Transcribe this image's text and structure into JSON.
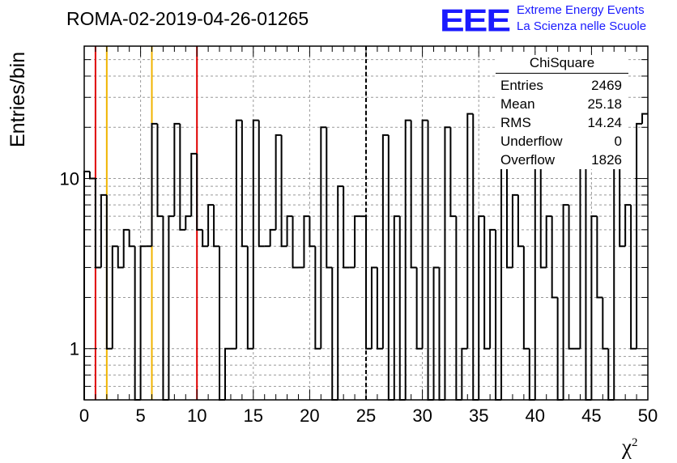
{
  "header": {
    "title": "ROMA-02-2019-04-26-01265",
    "logo_text": "EEE",
    "logo_line1": "Extreme Energy Events",
    "logo_line2": "La Scienza nelle Scuole"
  },
  "stats": {
    "title": "ChiSquare",
    "rows": [
      {
        "label": "Entries",
        "value": "2469"
      },
      {
        "label": "Mean",
        "value": "25.18"
      },
      {
        "label": "RMS",
        "value": "14.24"
      },
      {
        "label": "Underflow",
        "value": "0"
      },
      {
        "label": "Overflow",
        "value": "1826"
      }
    ]
  },
  "chart_data": {
    "type": "histogram",
    "ylabel": "Entries/bin",
    "xlabel": "χ",
    "xlabel_sup": "2",
    "xlim": [
      0,
      50
    ],
    "ylim": [
      0.5,
      60
    ],
    "yscale": "log",
    "grid": true,
    "bin_width": 0.5,
    "x_ticks": [
      0,
      5,
      10,
      15,
      20,
      25,
      30,
      35,
      40,
      45,
      50
    ],
    "y_ticks": [
      1,
      10
    ],
    "values": [
      11,
      10,
      3,
      8,
      1,
      4,
      3,
      5,
      4,
      0,
      4,
      4,
      21,
      6,
      0,
      6,
      21,
      5,
      6,
      14,
      5,
      4,
      7,
      4,
      0,
      1,
      1,
      22,
      4,
      1,
      22,
      4,
      4,
      5,
      18,
      4,
      6,
      3,
      3,
      6,
      4,
      1,
      20,
      3,
      0,
      9,
      3,
      3,
      6,
      6,
      1,
      3,
      1,
      18,
      0,
      6,
      0,
      22,
      3,
      1,
      22,
      0,
      3,
      0,
      20,
      6,
      0,
      1,
      24,
      0,
      6,
      1,
      5,
      0,
      14,
      3,
      8,
      4,
      1,
      0,
      21,
      3,
      6,
      2,
      0,
      7,
      1,
      1,
      20,
      0,
      6,
      2,
      1,
      0,
      14,
      4,
      7,
      1,
      21,
      24
    ],
    "colors": {
      "histogram": "#000000",
      "red_line": "#e00000",
      "yellow_line": "#f0b400",
      "grid": "#999999"
    },
    "vertical_lines": [
      {
        "x": 1,
        "color": "red",
        "style": "solid"
      },
      {
        "x": 2,
        "color": "yellow",
        "style": "solid"
      },
      {
        "x": 6,
        "color": "yellow",
        "style": "solid"
      },
      {
        "x": 10,
        "color": "red",
        "style": "solid"
      },
      {
        "x": 25,
        "color": "black",
        "style": "dashed"
      }
    ]
  }
}
